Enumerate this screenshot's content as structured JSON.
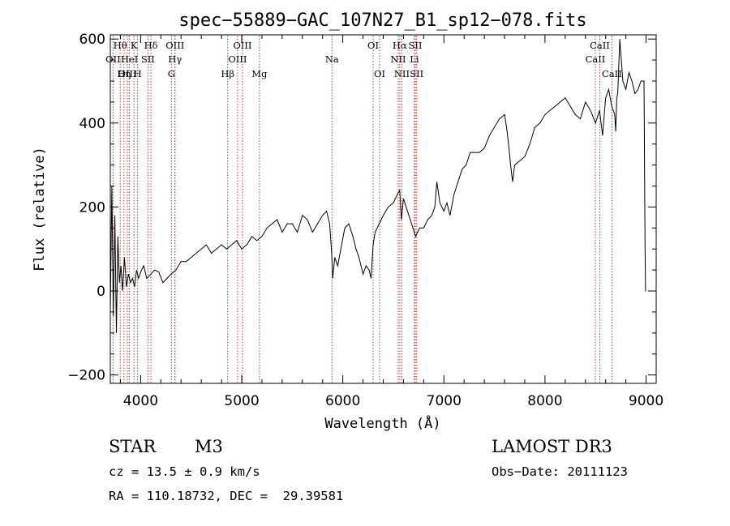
{
  "chart_data": {
    "type": "line",
    "title": "spec−55889−GAC_107N27_B1_sp12−078.fits",
    "xlabel": "Wavelength (Å)",
    "ylabel": "Flux (relative)",
    "xlim": [
      3700,
      9100
    ],
    "ylim": [
      -220,
      610
    ],
    "x_ticks": [
      4000,
      5000,
      6000,
      7000,
      8000,
      9000
    ],
    "y_ticks": [
      -200,
      0,
      200,
      400,
      600
    ],
    "x_minor_step": 200,
    "y_minor_step": 50,
    "series": [
      {
        "name": "flux",
        "x": [
          3700,
          3715,
          3730,
          3745,
          3760,
          3775,
          3790,
          3805,
          3820,
          3840,
          3860,
          3880,
          3900,
          3920,
          3940,
          3960,
          3980,
          4000,
          4030,
          4060,
          4100,
          4140,
          4180,
          4220,
          4260,
          4300,
          4350,
          4400,
          4450,
          4500,
          4550,
          4600,
          4650,
          4700,
          4750,
          4800,
          4850,
          4900,
          4950,
          5000,
          5050,
          5100,
          5150,
          5200,
          5250,
          5300,
          5350,
          5400,
          5450,
          5500,
          5550,
          5600,
          5650,
          5700,
          5750,
          5800,
          5840,
          5870,
          5890,
          5900,
          5920,
          5950,
          5980,
          6020,
          6060,
          6100,
          6130,
          6160,
          6200,
          6230,
          6260,
          6280,
          6300,
          6320,
          6340,
          6360,
          6400,
          6450,
          6500,
          6540,
          6563,
          6580,
          6600,
          6640,
          6680,
          6720,
          6760,
          6800,
          6840,
          6880,
          6910,
          6930,
          6960,
          7000,
          7030,
          7060,
          7100,
          7140,
          7180,
          7220,
          7260,
          7300,
          7350,
          7400,
          7450,
          7500,
          7550,
          7600,
          7620,
          7640,
          7660,
          7680,
          7700,
          7750,
          7800,
          7850,
          7900,
          7950,
          8000,
          8050,
          8100,
          8150,
          8200,
          8250,
          8300,
          8350,
          8400,
          8450,
          8500,
          8540,
          8570,
          8600,
          8630,
          8660,
          8690,
          8700,
          8710,
          8720,
          8740,
          8770,
          8800,
          8830,
          8860,
          8890,
          8920,
          8950,
          8980,
          8990,
          8995,
          9000
        ],
        "y": [
          -50,
          250,
          -60,
          180,
          -100,
          130,
          20,
          60,
          0,
          80,
          10,
          40,
          20,
          30,
          10,
          50,
          30,
          45,
          60,
          30,
          40,
          50,
          45,
          20,
          30,
          40,
          50,
          70,
          70,
          80,
          90,
          100,
          110,
          90,
          100,
          110,
          100,
          110,
          120,
          100,
          110,
          130,
          120,
          130,
          150,
          160,
          170,
          140,
          160,
          160,
          140,
          180,
          170,
          140,
          160,
          180,
          190,
          160,
          90,
          30,
          80,
          60,
          100,
          150,
          160,
          130,
          100,
          80,
          40,
          60,
          50,
          30,
          110,
          140,
          150,
          160,
          180,
          200,
          210,
          230,
          240,
          170,
          220,
          190,
          160,
          130,
          150,
          150,
          170,
          180,
          200,
          260,
          210,
          190,
          210,
          180,
          230,
          260,
          290,
          300,
          330,
          330,
          330,
          340,
          370,
          390,
          410,
          420,
          390,
          350,
          300,
          260,
          300,
          310,
          320,
          350,
          390,
          400,
          420,
          430,
          440,
          450,
          460,
          440,
          420,
          410,
          450,
          430,
          400,
          430,
          370,
          460,
          480,
          440,
          420,
          380,
          460,
          470,
          600,
          500,
          480,
          520,
          500,
          470,
          480,
          500,
          500,
          100,
          0,
          0
        ]
      }
    ],
    "line_markers": [
      {
        "name": "Hθ",
        "x": 3798,
        "row": 0
      },
      {
        "name": "OII",
        "x": 3727,
        "row": 1
      },
      {
        "name": "OIII",
        "x": 3869,
        "row": 2
      },
      {
        "name": "HeI",
        "x": 3889,
        "row": 1
      },
      {
        "name": "K",
        "x": 3934,
        "row": 0
      },
      {
        "name": "Hη",
        "x": 3835,
        "row": 2
      },
      {
        "name": "H",
        "x": 3970,
        "row": 2
      },
      {
        "name": "SII",
        "x": 4072,
        "row": 1
      },
      {
        "name": "Hδ",
        "x": 4102,
        "row": 0
      },
      {
        "name": "OIII",
        "x": 4340,
        "row": 0
      },
      {
        "name": "Hγ",
        "x": 4340,
        "row": 1
      },
      {
        "name": "G",
        "x": 4305,
        "row": 2
      },
      {
        "name": "Hβ",
        "x": 4861,
        "row": 2
      },
      {
        "name": "OIII",
        "x": 4959,
        "row": 1
      },
      {
        "name": "OIII",
        "x": 5007,
        "row": 0
      },
      {
        "name": "Mg",
        "x": 5175,
        "row": 2
      },
      {
        "name": "Na",
        "x": 5893,
        "row": 1
      },
      {
        "name": "OI",
        "x": 6300,
        "row": 0
      },
      {
        "name": "OI",
        "x": 6364,
        "row": 2
      },
      {
        "name": "Hα",
        "x": 6563,
        "row": 0
      },
      {
        "name": "NII",
        "x": 6548,
        "row": 1
      },
      {
        "name": "NII",
        "x": 6584,
        "row": 2
      },
      {
        "name": "SII",
        "x": 6717,
        "row": 0
      },
      {
        "name": "Li",
        "x": 6708,
        "row": 1
      },
      {
        "name": "SII",
        "x": 6731,
        "row": 2
      },
      {
        "name": "CaII",
        "x": 8542,
        "row": 0
      },
      {
        "name": "CaII",
        "x": 8498,
        "row": 1
      },
      {
        "name": "CaII",
        "x": 8662,
        "row": 2
      }
    ]
  },
  "info": {
    "object_class": "STAR",
    "subclass": "M3",
    "redshift": "cz = 13.5 ± 0.9 km/s",
    "coords": "RA = 110.18732, DEC =  29.39581",
    "survey": "LAMOST DR3",
    "obs_date": "Obs−Date: 20111123"
  }
}
